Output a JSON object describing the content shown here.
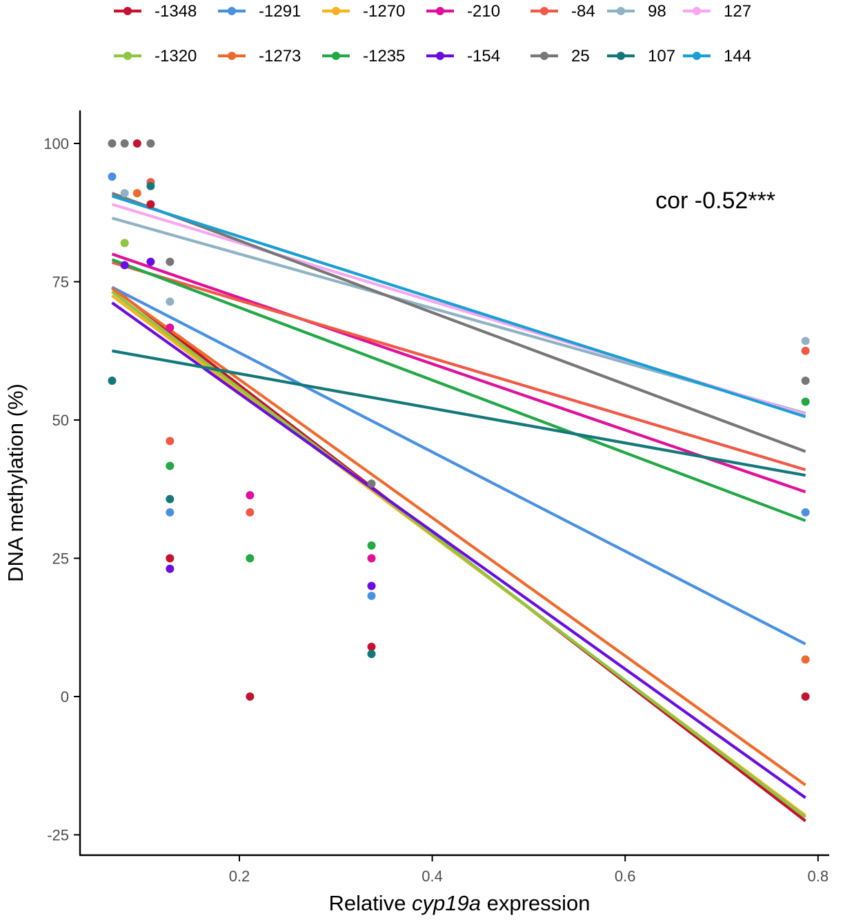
{
  "chart_data": {
    "type": "scatter",
    "title": "",
    "xlabel_prefix": "Relative ",
    "xlabel_italic": "cyp19a",
    "xlabel_suffix": " expression",
    "ylabel": "DNA methylation (%)",
    "annotation": "cor -0.52***",
    "xlim": [
      0.05,
      0.82
    ],
    "ylim": [
      -28,
      106
    ],
    "x_ticks": [
      0.2,
      0.4,
      0.6,
      0.8
    ],
    "x_tick_labels": [
      "0.2",
      "0.4",
      "0.6",
      "0.8"
    ],
    "y_ticks": [
      100,
      75,
      50,
      25,
      0,
      -25
    ],
    "y_tick_labels": [
      "100",
      "75",
      "50",
      "25",
      "0",
      "-25"
    ],
    "grid": false,
    "legend_position": "top",
    "series": [
      {
        "name": "-1348",
        "color": "#c4122f",
        "line": [
          [
            0.068,
            74.0
          ],
          [
            0.787,
            -22.5
          ]
        ],
        "points": [
          [
            0.094,
            100
          ],
          [
            0.108,
            89
          ],
          [
            0.128,
            25
          ],
          [
            0.211,
            0
          ],
          [
            0.337,
            9
          ],
          [
            0.787,
            0
          ]
        ]
      },
      {
        "name": "-1291",
        "color": "#4a90e2",
        "line": [
          [
            0.068,
            74.0
          ],
          [
            0.787,
            9.5
          ]
        ],
        "points": [
          [
            0.068,
            94
          ],
          [
            0.128,
            33.3
          ],
          [
            0.337,
            18.2
          ],
          [
            0.787,
            33.3
          ]
        ]
      },
      {
        "name": "-1270",
        "color": "#f5b21e",
        "line": [
          [
            0.068,
            72.5
          ],
          [
            0.787,
            -21.5
          ]
        ],
        "points": []
      },
      {
        "name": "-210",
        "color": "#e0109a",
        "line": [
          [
            0.068,
            80.0
          ],
          [
            0.787,
            37.0
          ]
        ],
        "points": [
          [
            0.128,
            66.7
          ],
          [
            0.211,
            36.4
          ],
          [
            0.337,
            25
          ]
        ]
      },
      {
        "name": "-84",
        "color": "#f05a45",
        "line": [
          [
            0.068,
            78.5
          ],
          [
            0.787,
            41.0
          ]
        ],
        "points": [
          [
            0.108,
            93
          ],
          [
            0.128,
            46.2
          ],
          [
            0.211,
            33.3
          ],
          [
            0.787,
            62.5
          ]
        ]
      },
      {
        "name": "98",
        "color": "#8fb3c4",
        "line": [
          [
            0.068,
            86.5
          ],
          [
            0.787,
            51.2
          ]
        ],
        "points": [
          [
            0.081,
            91
          ],
          [
            0.128,
            71.4
          ],
          [
            0.787,
            64.3
          ]
        ]
      },
      {
        "name": "127",
        "color": "#f7a8f0",
        "line": [
          [
            0.068,
            89.0
          ],
          [
            0.787,
            51.0
          ]
        ],
        "points": []
      },
      {
        "name": "-1320",
        "color": "#8dc63f",
        "line": [
          [
            0.068,
            73.2
          ],
          [
            0.787,
            -21.8
          ]
        ],
        "points": [
          [
            0.081,
            82
          ]
        ]
      },
      {
        "name": "-1273",
        "color": "#ee6a2c",
        "line": [
          [
            0.068,
            73.8
          ],
          [
            0.787,
            -16.0
          ]
        ],
        "points": [
          [
            0.094,
            91
          ],
          [
            0.787,
            6.7
          ]
        ]
      },
      {
        "name": "-1235",
        "color": "#22a845",
        "line": [
          [
            0.068,
            79.0
          ],
          [
            0.787,
            31.8
          ]
        ],
        "points": [
          [
            0.128,
            41.7
          ],
          [
            0.211,
            25
          ],
          [
            0.337,
            27.3
          ],
          [
            0.787,
            53.3
          ]
        ]
      },
      {
        "name": "-154",
        "color": "#6a0de0",
        "line": [
          [
            0.068,
            71.2
          ],
          [
            0.787,
            -18.3
          ]
        ],
        "points": [
          [
            0.081,
            78
          ],
          [
            0.108,
            78.6
          ],
          [
            0.128,
            23.1
          ],
          [
            0.337,
            20
          ]
        ]
      },
      {
        "name": "25",
        "color": "#777777",
        "line": [
          [
            0.068,
            91.0
          ],
          [
            0.787,
            44.3
          ]
        ],
        "points": [
          [
            0.068,
            100
          ],
          [
            0.081,
            100
          ],
          [
            0.108,
            100
          ],
          [
            0.128,
            78.6
          ],
          [
            0.337,
            38.5
          ],
          [
            0.787,
            57.1
          ]
        ]
      },
      {
        "name": "107",
        "color": "#14787a",
        "line": [
          [
            0.068,
            62.5
          ],
          [
            0.787,
            40.0
          ]
        ],
        "points": [
          [
            0.068,
            57.1
          ],
          [
            0.108,
            92.3
          ],
          [
            0.128,
            35.7
          ],
          [
            0.337,
            7.7
          ]
        ]
      },
      {
        "name": "144",
        "color": "#1a9fd4",
        "line": [
          [
            0.068,
            90.5
          ],
          [
            0.787,
            50.6
          ]
        ],
        "points": []
      }
    ],
    "legend_order": [
      [
        "-1348",
        "-1291",
        "-1270",
        "-210",
        "-84",
        "98",
        "127"
      ],
      [
        "-1320",
        "-1273",
        "-1235",
        "-154",
        "25",
        "107",
        "144"
      ]
    ]
  }
}
